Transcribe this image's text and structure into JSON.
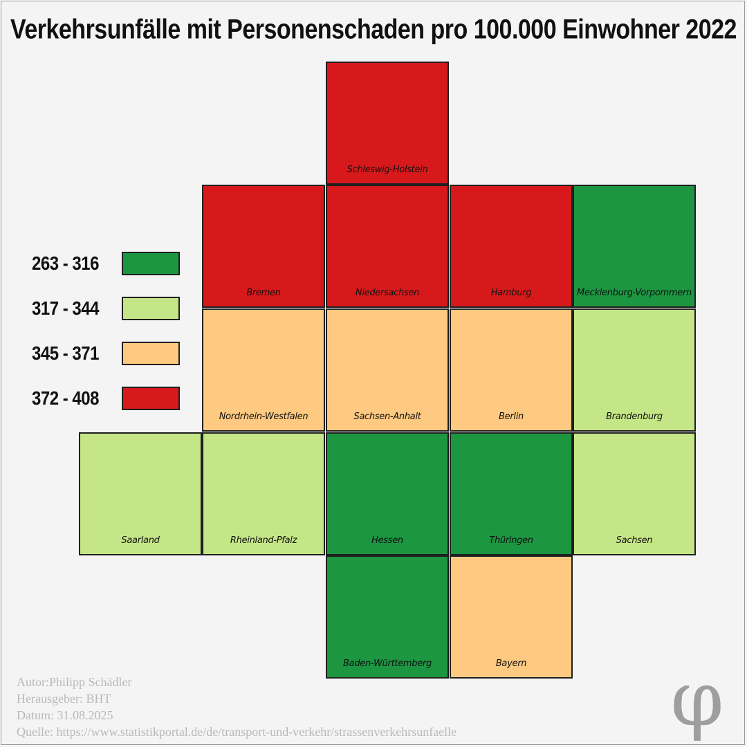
{
  "title": "Verkehrsunfälle mit Personenschaden pro 100.000 Einwohner 2022",
  "legend": [
    {
      "label": "263 - 316",
      "color": "#1c9641"
    },
    {
      "label": "317 - 344",
      "color": "#c5e686"
    },
    {
      "label": "345 - 371",
      "color": "#fec980"
    },
    {
      "label": "372 - 408",
      "color": "#d7191c"
    }
  ],
  "states": [
    {
      "name": "Schleswig-Holstein",
      "class": 3
    },
    {
      "name": "Bremen",
      "class": 3
    },
    {
      "name": "Niedersachsen",
      "class": 3
    },
    {
      "name": "Hamburg",
      "class": 3
    },
    {
      "name": "Mecklenburg-Vorpommern",
      "class": 0
    },
    {
      "name": "Nordrhein-Westfalen",
      "class": 2
    },
    {
      "name": "Sachsen-Anhalt",
      "class": 2
    },
    {
      "name": "Berlin",
      "class": 2
    },
    {
      "name": "Brandenburg",
      "class": 1
    },
    {
      "name": "Saarland",
      "class": 1
    },
    {
      "name": "Rheinland-Pfalz",
      "class": 1
    },
    {
      "name": "Hessen",
      "class": 0
    },
    {
      "name": "Thüringen",
      "class": 0
    },
    {
      "name": "Sachsen",
      "class": 1
    },
    {
      "name": "Baden-Württemberg",
      "class": 0
    },
    {
      "name": "Bayern",
      "class": 2
    }
  ],
  "footer": {
    "author": "Autor:Philipp Schädler",
    "publisher": "Herausgeber: BHT",
    "date": "Datum: 31.08.2025",
    "source": "Quelle: https://www.statistikportal.de/de/transport-und-verkehr/strassenverkehrsunfaelle"
  },
  "logo_glyph": "φ"
}
